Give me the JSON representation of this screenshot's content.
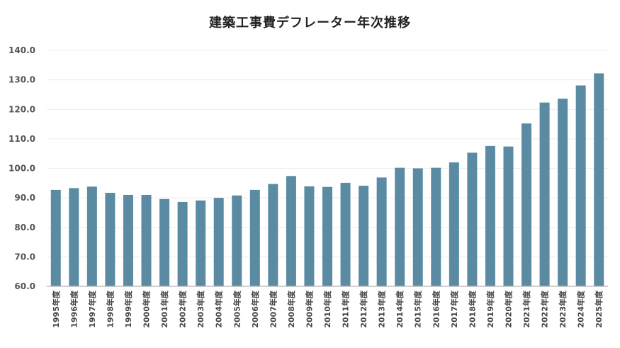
{
  "chart_data": {
    "type": "bar",
    "title": "建築工事費デフレーター年次推移",
    "xlabel": "",
    "ylabel": "",
    "ylim": [
      60,
      140
    ],
    "yticks": [
      "60.0",
      "70.0",
      "80.0",
      "90.0",
      "100.0",
      "110.0",
      "120.0",
      "130.0",
      "140.0"
    ],
    "grid": true,
    "bar_color": "#5b8ba3",
    "categories": [
      "1995年度",
      "1996年度",
      "1997年度",
      "1998年度",
      "1999年度",
      "2000年度",
      "2001年度",
      "2002年度",
      "2003年度",
      "2004年度",
      "2005年度",
      "2006年度",
      "2007年度",
      "2008年度",
      "2009年度",
      "2010年度",
      "2011年度",
      "2012年度",
      "2013年度",
      "2014年度",
      "2015年度",
      "2016年度",
      "2017年度",
      "2018年度",
      "2019年度",
      "2020年度",
      "2021年度",
      "2022年度",
      "2023年度",
      "2024年度",
      "2025年度"
    ],
    "values": [
      92.7,
      93.3,
      93.8,
      91.7,
      91.0,
      91.0,
      89.6,
      88.6,
      89.1,
      90.0,
      90.8,
      92.7,
      94.7,
      97.4,
      93.9,
      93.7,
      95.1,
      94.1,
      96.9,
      100.2,
      100.0,
      100.2,
      102.0,
      105.3,
      107.6,
      107.4,
      115.2,
      122.3,
      123.6,
      128.1,
      132.2
    ]
  }
}
